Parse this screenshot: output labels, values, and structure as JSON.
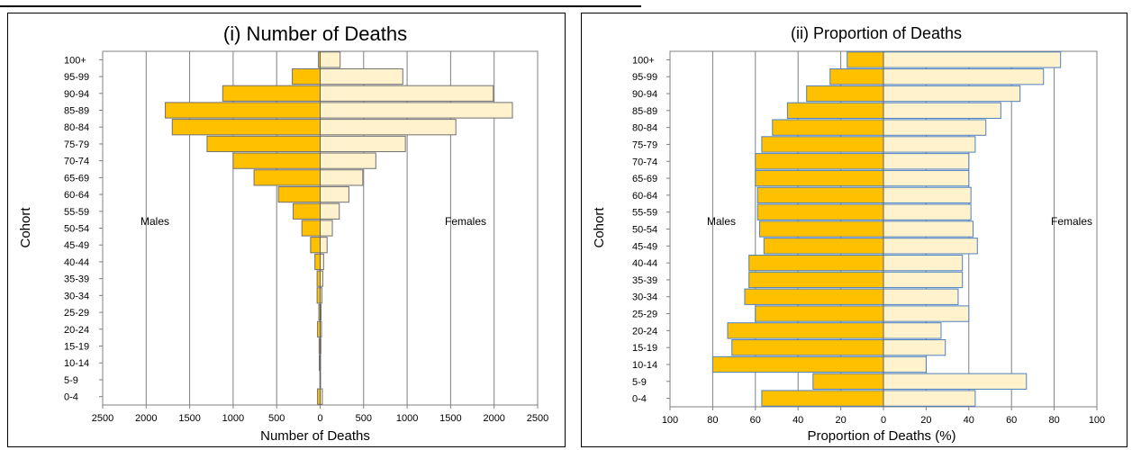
{
  "chart_data": [
    {
      "type": "bar",
      "orientation": "horizontal",
      "layout": "population-pyramid",
      "title": "(i) Number  of Deaths",
      "xlabel": "Number of Deaths",
      "ylabel": "Cohort",
      "xlim": [
        -2500,
        2500
      ],
      "xticks": [
        -2500,
        -2000,
        -1500,
        -1000,
        -500,
        0,
        500,
        1000,
        1500,
        2000,
        2500
      ],
      "xtick_labels": [
        "2500",
        "2000",
        "1500",
        "1000",
        "500",
        "0",
        "500",
        "1000",
        "1500",
        "2000",
        "2500"
      ],
      "grid": "vertical",
      "categories": [
        "0-4",
        "5-9",
        "10-14",
        "15-19",
        "20-24",
        "25-29",
        "30-34",
        "35-39",
        "40-44",
        "45-49",
        "50-54",
        "55-59",
        "60-64",
        "65-69",
        "70-74",
        "75-79",
        "80-84",
        "85-89",
        "90-94",
        "95-99",
        "100+"
      ],
      "series": [
        {
          "name": "Males",
          "side": "left",
          "color": "#ffc000",
          "values": [
            30,
            3,
            10,
            12,
            30,
            15,
            35,
            35,
            60,
            110,
            210,
            310,
            480,
            760,
            1000,
            1300,
            1700,
            1780,
            1120,
            320,
            20
          ]
        },
        {
          "name": "Females",
          "side": "right",
          "color": "#fff2cc",
          "values": [
            25,
            5,
            5,
            8,
            15,
            10,
            20,
            30,
            40,
            80,
            140,
            220,
            330,
            490,
            640,
            980,
            1560,
            2210,
            1990,
            950,
            230
          ]
        }
      ],
      "annotations": [
        "Males",
        "Females"
      ]
    },
    {
      "type": "bar",
      "orientation": "horizontal",
      "layout": "population-pyramid",
      "title": "(ii) Proportion of Deaths",
      "xlabel": "Proportion of Deaths (%)",
      "ylabel": "Cohort",
      "xlim": [
        -100,
        100
      ],
      "xticks": [
        -100,
        -80,
        -60,
        -40,
        -20,
        0,
        20,
        40,
        60,
        80,
        100
      ],
      "xtick_labels": [
        "100",
        "80",
        "60",
        "40",
        "20",
        "0",
        "20",
        "40",
        "60",
        "80",
        "100"
      ],
      "grid": "vertical",
      "categories": [
        "0-4",
        "5-9",
        "10-14",
        "15-19",
        "20-24",
        "25-29",
        "30-34",
        "35-39",
        "40-44",
        "45-49",
        "50-54",
        "55-59",
        "60-64",
        "65-69",
        "70-74",
        "75-79",
        "80-84",
        "85-89",
        "90-94",
        "95-99",
        "100+"
      ],
      "series": [
        {
          "name": "Males",
          "side": "left",
          "color": "#ffc000",
          "values": [
            57,
            33,
            80,
            71,
            73,
            60,
            65,
            63,
            63,
            56,
            58,
            59,
            59,
            60,
            60,
            57,
            52,
            45,
            36,
            25,
            17
          ]
        },
        {
          "name": "Females",
          "side": "right",
          "color": "#fff2cc",
          "values": [
            43,
            67,
            20,
            29,
            27,
            40,
            35,
            37,
            37,
            44,
            42,
            41,
            41,
            40,
            40,
            43,
            48,
            55,
            64,
            75,
            83
          ]
        }
      ],
      "annotations": [
        "Males",
        "Females"
      ]
    }
  ]
}
